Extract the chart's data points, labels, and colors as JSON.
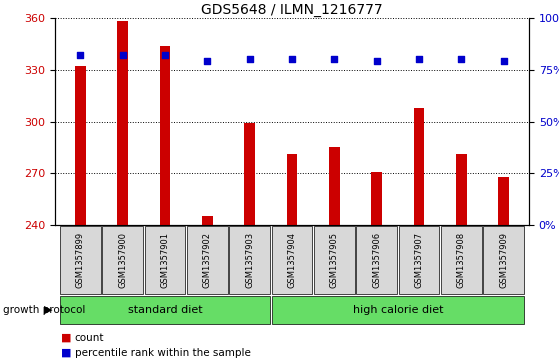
{
  "title": "GDS5648 / ILMN_1216777",
  "samples": [
    "GSM1357899",
    "GSM1357900",
    "GSM1357901",
    "GSM1357902",
    "GSM1357903",
    "GSM1357904",
    "GSM1357905",
    "GSM1357906",
    "GSM1357907",
    "GSM1357908",
    "GSM1357909"
  ],
  "counts": [
    332,
    358,
    344,
    245,
    299,
    281,
    285,
    271,
    308,
    281,
    268
  ],
  "percentiles": [
    82,
    82,
    82,
    79,
    80,
    80,
    80,
    79,
    80,
    80,
    79
  ],
  "y_min": 240,
  "y_max": 360,
  "y_ticks": [
    240,
    270,
    300,
    330,
    360
  ],
  "y2_ticks": [
    0,
    25,
    50,
    75,
    100
  ],
  "y2_tick_labels": [
    "0%",
    "25%",
    "50%",
    "75%",
    "100%"
  ],
  "bar_color": "#cc0000",
  "dot_color": "#0000cc",
  "standard_label": "standard diet",
  "high_calorie_label": "high calorie diet",
  "sample_box_color": "#d8d8d8",
  "green_color": "#66dd66",
  "growth_protocol_label": "growth protocol",
  "legend_count_label": "count",
  "legend_percentile_label": "percentile rank within the sample",
  "title_fontsize": 10,
  "tick_fontsize": 8,
  "bar_width": 0.25
}
